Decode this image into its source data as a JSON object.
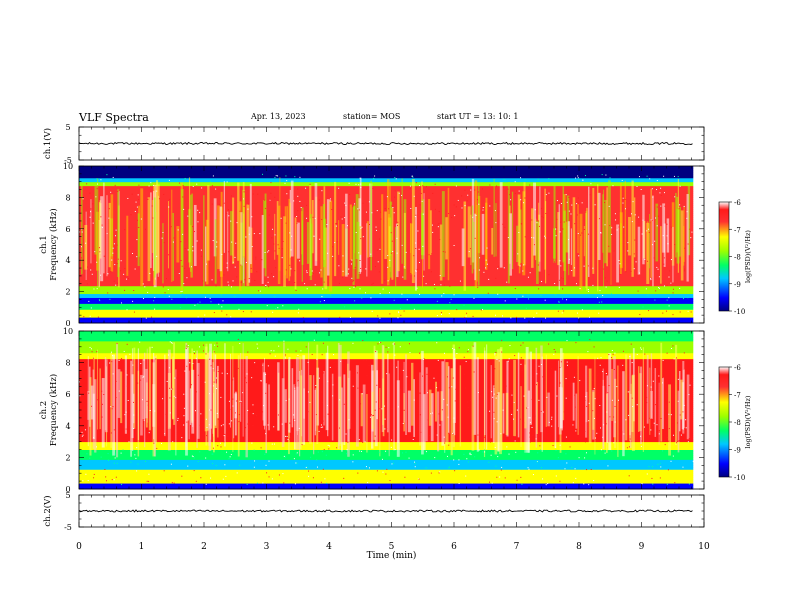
{
  "header": {
    "title": "VLF Spectra",
    "date": "Apr. 13, 2023",
    "station": "station= MOS",
    "start_ut": "start  UT =   13: 10: 1"
  },
  "chart_data": [
    {
      "type": "line",
      "ylabel": "ch.1(V)",
      "ylim": [
        -5,
        5
      ],
      "yticks": [
        "5",
        "-5"
      ],
      "xlim": [
        0,
        10
      ],
      "series": [
        {
          "values_approx_constant": 0
        }
      ]
    },
    {
      "type": "heatmap",
      "ylabel_line1": "ch.1",
      "ylabel_line2": "Frequency (kHz)",
      "ylim": [
        0,
        10
      ],
      "yticks": [
        "0",
        "2",
        "4",
        "6",
        "8",
        "10"
      ],
      "xlim": [
        0,
        10
      ],
      "data_end_min": 9.83,
      "colorbar": {
        "label": "log(PSD)(V²/Hz)",
        "ticks": [
          "-6",
          "-7",
          "-8",
          "-9",
          "-10"
        ],
        "range": [
          -10,
          -6
        ]
      }
    },
    {
      "type": "heatmap",
      "ylabel_line1": "ch.2",
      "ylabel_line2": "Frequency (kHz)",
      "ylim": [
        0,
        10
      ],
      "yticks": [
        "0",
        "2",
        "4",
        "6",
        "8",
        "10"
      ],
      "xlim": [
        0,
        10
      ],
      "data_end_min": 9.83,
      "colorbar": {
        "label": "log(PSD)(V²/Hz)",
        "ticks": [
          "-6",
          "-7",
          "-8",
          "-9",
          "-10"
        ],
        "range": [
          -10,
          -6
        ]
      }
    },
    {
      "type": "line",
      "ylabel": "ch.2(V)",
      "ylim": [
        -5,
        5
      ],
      "yticks": [
        "5",
        "-5"
      ],
      "xlim": [
        0,
        10
      ],
      "series": [
        {
          "values_approx_constant": 0
        }
      ]
    }
  ],
  "x_axis": {
    "label": "Time (min)",
    "ticks": [
      "0",
      "1",
      "2",
      "3",
      "4",
      "5",
      "6",
      "7",
      "8",
      "9",
      "10"
    ]
  }
}
